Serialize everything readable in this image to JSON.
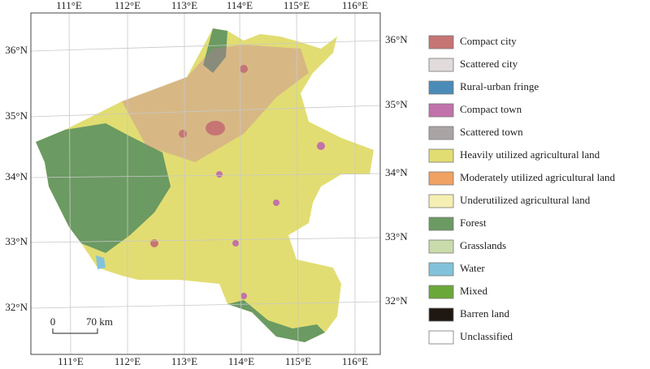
{
  "map": {
    "lon_labels": [
      "111°E",
      "112°E",
      "113°E",
      "114°E",
      "115°E",
      "116°E"
    ],
    "lat_labels": [
      "36°N",
      "35°N",
      "34°N",
      "33°N",
      "32°N"
    ],
    "legend": [
      {
        "label": "Compact city",
        "color": "#c77474"
      },
      {
        "label": "Scattered city",
        "color": "#e2dbdb"
      },
      {
        "label": "Rural-urban fringe",
        "color": "#4b8bb8"
      },
      {
        "label": "Compact town",
        "color": "#c272aa"
      },
      {
        "label": "Scattered town",
        "color": "#aaa3a3"
      },
      {
        "label": "Heavily utilized agricultural land",
        "color": "#e2dd72"
      },
      {
        "label": "Moderately utilized agricultural land",
        "color": "#f0a262"
      },
      {
        "label": "Underutilized agricultural land",
        "color": "#f6efb4"
      },
      {
        "label": "Forest",
        "color": "#6b9a62"
      },
      {
        "label": "Grasslands",
        "color": "#cadcab"
      },
      {
        "label": "Water",
        "color": "#82c2da"
      },
      {
        "label": "Mixed",
        "color": "#6aa83a"
      },
      {
        "label": "Barren land",
        "color": "#1e1712"
      },
      {
        "label": "Unclassified",
        "color": "#ffffff"
      }
    ],
    "scale_bar": {
      "start": "0",
      "end": "70 km"
    }
  }
}
